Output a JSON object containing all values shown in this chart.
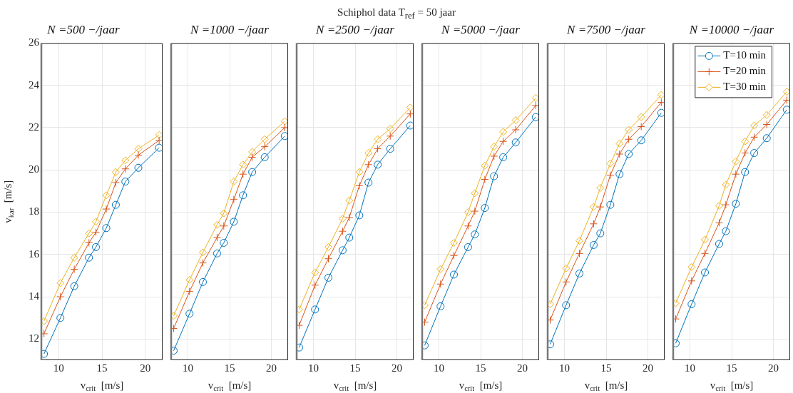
{
  "chart_data": [
    {
      "type": "line",
      "title": "N =500 −/jaar",
      "xlabel": "v$_{crit}$  [m/s]",
      "ylabel": "v$_{kar}$  [m/s]",
      "annotations": [
        "Schiphol data   T$_{ref}$ = 50 jaar"
      ],
      "xlim": [
        8,
        22
      ],
      "xticks": [
        10,
        15,
        20
      ],
      "ylim": [
        11,
        26
      ],
      "yticks": [
        12,
        14,
        16,
        18,
        20,
        22,
        24,
        26
      ],
      "grid": true,
      "legend": false,
      "x": [
        8.3,
        10.2,
        11.8,
        13.5,
        14.3,
        15.5,
        16.6,
        17.7,
        19.2,
        21.6
      ],
      "series": [
        {
          "color": "#0072bd",
          "marker": "circle",
          "values": [
            11.3,
            13.0,
            14.5,
            15.85,
            16.35,
            17.25,
            18.35,
            19.45,
            20.1,
            21.05
          ]
        },
        {
          "color": "#d95319",
          "marker": "cross",
          "values": [
            12.25,
            14.0,
            15.3,
            16.55,
            17.05,
            18.15,
            19.4,
            20.05,
            20.7,
            21.4
          ]
        },
        {
          "color": "#edb120",
          "marker": "diamond",
          "values": [
            12.85,
            14.65,
            15.85,
            17.0,
            17.55,
            18.8,
            19.9,
            20.45,
            21.0,
            21.65
          ]
        }
      ]
    },
    {
      "type": "line",
      "title": "N =1000 −/jaar",
      "xlabel": "v$_{crit}$  [m/s]",
      "xlim": [
        8,
        22
      ],
      "xticks": [
        10,
        15,
        20
      ],
      "ylim": [
        11,
        26
      ],
      "yticks": [
        12,
        14,
        16,
        18,
        20,
        22,
        24,
        26
      ],
      "grid": true,
      "legend": false,
      "tick_labels": "x",
      "x": [
        8.3,
        10.2,
        11.8,
        13.5,
        14.3,
        15.5,
        16.6,
        17.7,
        19.2,
        21.6
      ],
      "series": [
        {
          "color": "#0072bd",
          "marker": "circle",
          "values": [
            11.45,
            13.2,
            14.7,
            16.05,
            16.55,
            17.55,
            18.8,
            19.9,
            20.6,
            21.6
          ]
        },
        {
          "color": "#d95319",
          "marker": "cross",
          "values": [
            12.5,
            14.25,
            15.6,
            16.8,
            17.35,
            18.6,
            19.8,
            20.6,
            21.1,
            22.0
          ]
        },
        {
          "color": "#edb120",
          "marker": "diamond",
          "values": [
            13.1,
            14.8,
            16.1,
            17.4,
            17.95,
            19.45,
            20.25,
            20.85,
            21.45,
            22.3
          ]
        }
      ]
    },
    {
      "type": "line",
      "title": "N =2500 −/jaar",
      "xlabel": "v$_{crit}$  [m/s]",
      "xlim": [
        8,
        22
      ],
      "xticks": [
        10,
        15,
        20
      ],
      "ylim": [
        11,
        26
      ],
      "yticks": [
        12,
        14,
        16,
        18,
        20,
        22,
        24,
        26
      ],
      "grid": true,
      "legend": false,
      "tick_labels": "x",
      "x": [
        8.3,
        10.2,
        11.8,
        13.5,
        14.3,
        15.5,
        16.6,
        17.7,
        19.2,
        21.6
      ],
      "series": [
        {
          "color": "#0072bd",
          "marker": "circle",
          "values": [
            11.6,
            13.4,
            14.9,
            16.2,
            16.8,
            17.85,
            19.4,
            20.25,
            21.0,
            22.1
          ]
        },
        {
          "color": "#d95319",
          "marker": "cross",
          "values": [
            12.65,
            14.55,
            15.8,
            17.1,
            17.75,
            19.25,
            20.25,
            21.0,
            21.6,
            22.65
          ]
        },
        {
          "color": "#edb120",
          "marker": "diamond",
          "values": [
            13.4,
            15.15,
            16.35,
            17.7,
            18.55,
            19.9,
            20.8,
            21.45,
            21.95,
            22.95
          ]
        }
      ]
    },
    {
      "type": "line",
      "title": "N =5000 −/jaar",
      "xlabel": "v$_{crit}$  [m/s]",
      "xlim": [
        8,
        22
      ],
      "xticks": [
        10,
        15,
        20
      ],
      "ylim": [
        11,
        26
      ],
      "yticks": [
        12,
        14,
        16,
        18,
        20,
        22,
        24,
        26
      ],
      "grid": true,
      "legend": false,
      "tick_labels": "x",
      "x": [
        8.3,
        10.2,
        11.8,
        13.5,
        14.3,
        15.5,
        16.6,
        17.7,
        19.2,
        21.6
      ],
      "series": [
        {
          "color": "#0072bd",
          "marker": "circle",
          "values": [
            11.7,
            13.55,
            15.05,
            16.35,
            16.95,
            18.2,
            19.7,
            20.6,
            21.3,
            22.5
          ]
        },
        {
          "color": "#d95319",
          "marker": "cross",
          "values": [
            12.8,
            14.6,
            15.95,
            17.35,
            18.05,
            19.55,
            20.65,
            21.35,
            21.9,
            23.05
          ]
        },
        {
          "color": "#edb120",
          "marker": "diamond",
          "values": [
            13.6,
            15.3,
            16.55,
            18.0,
            18.9,
            20.2,
            21.1,
            21.8,
            22.35,
            23.4
          ]
        }
      ]
    },
    {
      "type": "line",
      "title": "N =7500 −/jaar",
      "xlabel": "v$_{crit}$  [m/s]",
      "xlim": [
        8,
        22
      ],
      "xticks": [
        10,
        15,
        20
      ],
      "ylim": [
        11,
        26
      ],
      "yticks": [
        12,
        14,
        16,
        18,
        20,
        22,
        24,
        26
      ],
      "grid": true,
      "legend": false,
      "tick_labels": "x",
      "x": [
        8.3,
        10.2,
        11.8,
        13.5,
        14.3,
        15.5,
        16.6,
        17.7,
        19.2,
        21.6
      ],
      "series": [
        {
          "color": "#0072bd",
          "marker": "circle",
          "values": [
            11.75,
            13.6,
            15.1,
            16.45,
            17.0,
            18.35,
            19.8,
            20.75,
            21.4,
            22.7
          ]
        },
        {
          "color": "#d95319",
          "marker": "cross",
          "values": [
            12.9,
            14.7,
            16.05,
            17.45,
            18.25,
            19.75,
            20.75,
            21.45,
            22.05,
            23.2
          ]
        },
        {
          "color": "#edb120",
          "marker": "diamond",
          "values": [
            13.65,
            15.35,
            16.65,
            18.25,
            19.15,
            20.3,
            21.25,
            21.9,
            22.5,
            23.55
          ]
        }
      ]
    },
    {
      "type": "line",
      "title": "N =10000 −/jaar",
      "xlabel": "v$_{crit}$  [m/s]",
      "xlim": [
        8,
        22
      ],
      "xticks": [
        10,
        15,
        20
      ],
      "ylim": [
        11,
        26
      ],
      "yticks": [
        12,
        14,
        16,
        18,
        20,
        22,
        24,
        26
      ],
      "grid": true,
      "legend": "top right",
      "tick_labels": "x",
      "x": [
        8.3,
        10.2,
        11.8,
        13.5,
        14.3,
        15.5,
        16.6,
        17.7,
        19.2,
        21.6
      ],
      "series": [
        {
          "name": "T=10 min",
          "color": "#0072bd",
          "marker": "circle",
          "values": [
            11.8,
            13.65,
            15.15,
            16.5,
            17.1,
            18.4,
            19.9,
            20.8,
            21.5,
            22.85
          ]
        },
        {
          "name": "T=20 min",
          "color": "#d95319",
          "marker": "cross",
          "values": [
            12.95,
            14.75,
            16.05,
            17.5,
            18.35,
            19.8,
            20.8,
            21.55,
            22.15,
            23.3
          ]
        },
        {
          "name": "T=30 min",
          "color": "#edb120",
          "marker": "diamond",
          "values": [
            13.7,
            15.4,
            16.7,
            18.3,
            19.3,
            20.4,
            21.35,
            22.1,
            22.6,
            23.7
          ]
        }
      ]
    }
  ]
}
